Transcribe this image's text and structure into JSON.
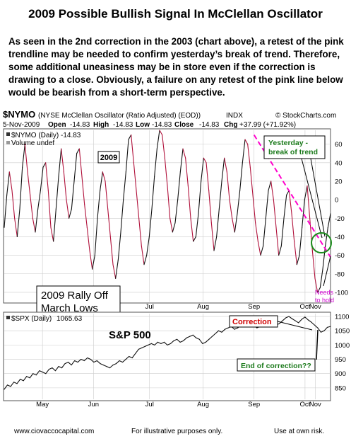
{
  "title": "2009 Possible Bullish Signal In McClellan Oscillator",
  "description": "As seen in the 2nd correction in the 2003 (chart above), a retest of the pink trendline may be needed to confirm yesterday’s break of trend. Therefore, some additional uneasiness may be in store even if the correction is drawing to a close. Obviously, a failure on any retest of the pink line below would be bearish from a short-term perspective.",
  "header": {
    "symbol": "$NYMO",
    "name": "(NYSE McClellan Oscillator (Ratio Adjusted) (EOD))",
    "exchange": "INDX",
    "source": "© StockCharts.com",
    "date": "5-Nov-2009",
    "open_label": "Open",
    "open": "-14.83",
    "high_label": "High",
    "high": "-14.83",
    "low_label": "Low",
    "low": "-14.83",
    "close_label": "Close",
    "close": "-14.83",
    "chg_label": "Chg",
    "chg": "+37.99 (+71.92%)"
  },
  "legend": {
    "nymo": "$NYMO (Daily) -14.83",
    "volume": "Volume undef",
    "spx_label": "$SPX (Daily)",
    "spx_value": "1065.63"
  },
  "annotations": {
    "year_box": "2009",
    "yesterday": "Yesterday -\nbreak of trend",
    "needs_hold": "Needs\nto hold",
    "rally": "2009 Rally Off\nMarch Lows",
    "correction": "Correction",
    "sp500": "S&P 500",
    "end_correction": "End of correction??"
  },
  "footer": {
    "website": "www.ciovaccocapital.com",
    "note": "For illustrative purposes only.",
    "risk": "Use at own risk."
  },
  "colors": {
    "background": "#ffffff",
    "osc_line": "#111111",
    "osc_red": "#b0103a",
    "trendline": "#ff00cc",
    "grid": "#cccccc",
    "green_circle": "#1a8a1a",
    "yesterday_text": "#1b7a1b",
    "correction_text": "#d00000",
    "needs_text": "#d000d0",
    "end_text": "#1b7a1b"
  },
  "chart_data": [
    {
      "type": "line",
      "panel": "oscillator",
      "ylim": [
        -110,
        75
      ],
      "y_ticks": [
        60,
        40,
        20,
        0,
        -20,
        -40,
        -60,
        -80,
        -100
      ],
      "x_ticks": [
        "May",
        "Jun",
        "Jul",
        "Aug",
        "Sep",
        "Oct",
        "Nov"
      ],
      "x_range": [
        0,
        128
      ],
      "x_tick_positions": [
        15,
        35,
        57,
        78,
        98,
        118,
        122
      ],
      "series": [
        {
          "values": [
            -30,
            5,
            30,
            10,
            -20,
            -40,
            -10,
            35,
            60,
            30,
            5,
            -20,
            -35,
            -10,
            10,
            35,
            40,
            10,
            -30,
            -45,
            -10,
            25,
            55,
            30,
            0,
            -20,
            -10,
            20,
            50,
            55,
            25,
            -5,
            -30,
            -55,
            -75,
            -60,
            -20,
            10,
            30,
            20,
            -10,
            -40,
            -70,
            -85,
            -65,
            -35,
            0,
            30,
            65,
            70,
            40,
            10,
            -20,
            -50,
            -70,
            -60,
            -40,
            -10,
            25,
            55,
            75,
            70,
            45,
            15,
            -20,
            -35,
            -25,
            0,
            30,
            55,
            45,
            15,
            -20,
            -45,
            -40,
            -15,
            20,
            45,
            40,
            10,
            -25,
            -55,
            -40,
            -10,
            20,
            45,
            30,
            0,
            -20,
            -35,
            -15,
            10,
            40,
            65,
            60,
            35,
            5,
            -25,
            -45,
            -60,
            -50,
            -20,
            10,
            20,
            0,
            -30,
            -60,
            -50,
            -20,
            5,
            10,
            -15,
            -45,
            -70,
            -60,
            -30,
            0,
            15,
            -20,
            -55,
            -85,
            -100,
            -95,
            -75,
            -50,
            -30,
            -15
          ]
        }
      ],
      "trendline": {
        "x": [
          98,
          128
        ],
        "y": [
          70,
          -62
        ]
      }
    },
    {
      "type": "line",
      "panel": "spx",
      "ylim": [
        810,
        1110
      ],
      "y_ticks": [
        1100,
        1050,
        1000,
        950,
        900,
        850
      ],
      "x_ticks": [
        "May",
        "Jun",
        "Jul",
        "Aug",
        "Sep",
        "Oct",
        "Nov"
      ],
      "x_range": [
        0,
        128
      ],
      "x_tick_positions": [
        15,
        35,
        57,
        78,
        98,
        118,
        122
      ],
      "series": [
        {
          "values": [
            845,
            860,
            855,
            870,
            865,
            880,
            875,
            890,
            885,
            900,
            895,
            910,
            905,
            900,
            915,
            920,
            910,
            925,
            920,
            935,
            940,
            930,
            945,
            940,
            950,
            945,
            955,
            950,
            940,
            945,
            935,
            930,
            925,
            920,
            930,
            935,
            945,
            940,
            950,
            960,
            955,
            970,
            985,
            990,
            995,
            1000,
            1005,
            1000,
            1010,
            1005,
            1010,
            1000,
            1005,
            1015,
            1020,
            1010,
            1015,
            1025,
            1030,
            1035,
            1025,
            1020,
            1005,
            1010,
            1020,
            1030,
            1040,
            1050,
            1045,
            1055,
            1060,
            1065,
            1055,
            1060,
            1070,
            1065,
            1075,
            1080,
            1070,
            1060,
            1065,
            1075,
            1085,
            1090,
            1080,
            1070,
            1075,
            1085,
            1095,
            1100,
            1092,
            1085,
            1078,
            1090,
            1098,
            1088,
            1080,
            1070,
            1060,
            1045,
            1050,
            1062,
            1065
          ]
        }
      ]
    }
  ]
}
